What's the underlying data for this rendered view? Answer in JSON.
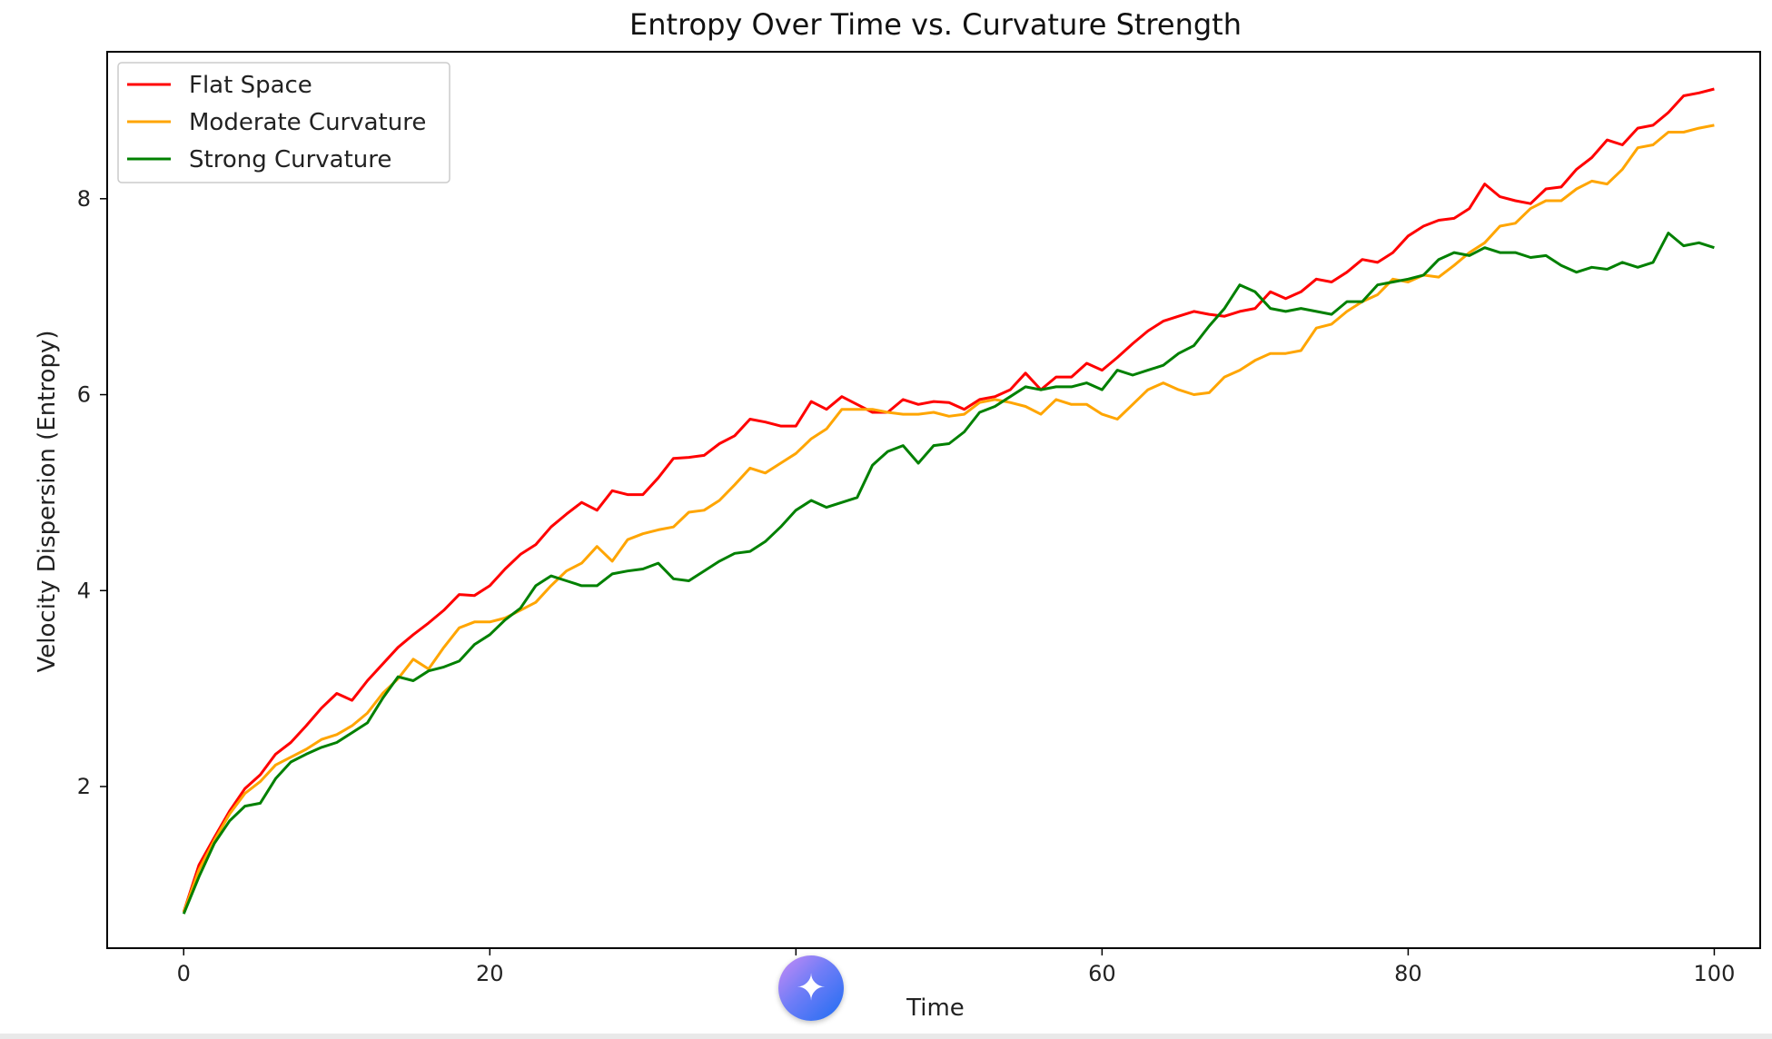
{
  "chart_data": {
    "type": "line",
    "title": "Entropy Over Time vs. Curvature Strength",
    "xlabel": "Time",
    "ylabel": "Velocity Dispersion (Entropy)",
    "xlim": [
      -5,
      103
    ],
    "ylim": [
      0.35,
      9.5
    ],
    "xticks": [
      0,
      20,
      40,
      60,
      80,
      100
    ],
    "yticks": [
      2,
      4,
      6,
      8
    ],
    "grid": false,
    "legend_position": "upper-left",
    "series": [
      {
        "name": "Flat Space",
        "color": "#ff0000",
        "x": [
          0,
          1,
          2,
          3,
          4,
          5,
          6,
          7,
          8,
          9,
          10,
          11,
          12,
          13,
          14,
          15,
          16,
          17,
          18,
          19,
          20,
          21,
          22,
          23,
          24,
          25,
          26,
          27,
          28,
          29,
          30,
          31,
          32,
          33,
          34,
          35,
          36,
          37,
          38,
          39,
          40,
          41,
          42,
          43,
          44,
          45,
          46,
          47,
          48,
          49,
          50,
          51,
          52,
          53,
          54,
          55,
          56,
          57,
          58,
          59,
          60,
          61,
          62,
          63,
          64,
          65,
          66,
          67,
          68,
          69,
          70,
          71,
          72,
          73,
          74,
          75,
          76,
          77,
          78,
          79,
          80,
          81,
          82,
          83,
          84,
          85,
          86,
          87,
          88,
          89,
          90,
          91,
          92,
          93,
          94,
          95,
          96,
          97,
          98,
          99,
          100
        ],
        "y": [
          0.72,
          1.2,
          1.48,
          1.75,
          1.98,
          2.12,
          2.33,
          2.45,
          2.62,
          2.8,
          2.95,
          2.88,
          3.08,
          3.25,
          3.42,
          3.55,
          3.67,
          3.8,
          3.96,
          3.95,
          4.05,
          4.22,
          4.37,
          4.47,
          4.65,
          4.78,
          4.9,
          4.82,
          5.02,
          4.98,
          4.98,
          5.15,
          5.35,
          5.36,
          5.38,
          5.5,
          5.58,
          5.75,
          5.72,
          5.68,
          5.68,
          5.93,
          5.85,
          5.98,
          5.9,
          5.82,
          5.82,
          5.95,
          5.9,
          5.93,
          5.92,
          5.85,
          5.95,
          5.98,
          6.05,
          6.22,
          6.05,
          6.18,
          6.18,
          6.32,
          6.25,
          6.38,
          6.52,
          6.65,
          6.75,
          6.8,
          6.85,
          6.82,
          6.8,
          6.85,
          6.88,
          7.05,
          6.98,
          7.05,
          7.18,
          7.15,
          7.25,
          7.38,
          7.35,
          7.45,
          7.62,
          7.72,
          7.78,
          7.8,
          7.9,
          8.15,
          8.02,
          7.98,
          7.95,
          8.1,
          8.12,
          8.3,
          8.42,
          8.6,
          8.55,
          8.72,
          8.75,
          8.88,
          9.05,
          9.08,
          9.12
        ]
      },
      {
        "name": "Moderate Curvature",
        "color": "#ffa500",
        "x": [
          0,
          1,
          2,
          3,
          4,
          5,
          6,
          7,
          8,
          9,
          10,
          11,
          12,
          13,
          14,
          15,
          16,
          17,
          18,
          19,
          20,
          21,
          22,
          23,
          24,
          25,
          26,
          27,
          28,
          29,
          30,
          31,
          32,
          33,
          34,
          35,
          36,
          37,
          38,
          39,
          40,
          41,
          42,
          43,
          44,
          45,
          46,
          47,
          48,
          49,
          50,
          51,
          52,
          53,
          54,
          55,
          56,
          57,
          58,
          59,
          60,
          61,
          62,
          63,
          64,
          65,
          66,
          67,
          68,
          69,
          70,
          71,
          72,
          73,
          74,
          75,
          76,
          77,
          78,
          79,
          80,
          81,
          82,
          83,
          84,
          85,
          86,
          87,
          88,
          89,
          90,
          91,
          92,
          93,
          94,
          95,
          96,
          97,
          98,
          99,
          100
        ],
        "y": [
          0.72,
          1.15,
          1.45,
          1.72,
          1.93,
          2.05,
          2.22,
          2.3,
          2.38,
          2.48,
          2.53,
          2.62,
          2.75,
          2.95,
          3.1,
          3.3,
          3.2,
          3.42,
          3.62,
          3.68,
          3.68,
          3.72,
          3.8,
          3.88,
          4.05,
          4.2,
          4.28,
          4.45,
          4.3,
          4.52,
          4.58,
          4.62,
          4.65,
          4.8,
          4.82,
          4.92,
          5.08,
          5.25,
          5.2,
          5.3,
          5.4,
          5.55,
          5.65,
          5.85,
          5.85,
          5.85,
          5.82,
          5.8,
          5.8,
          5.82,
          5.78,
          5.8,
          5.92,
          5.95,
          5.92,
          5.88,
          5.8,
          5.95,
          5.9,
          5.9,
          5.8,
          5.75,
          5.9,
          6.05,
          6.12,
          6.05,
          6.0,
          6.02,
          6.18,
          6.25,
          6.35,
          6.42,
          6.42,
          6.45,
          6.68,
          6.72,
          6.85,
          6.95,
          7.02,
          7.18,
          7.15,
          7.22,
          7.2,
          7.32,
          7.45,
          7.55,
          7.72,
          7.75,
          7.9,
          7.98,
          7.98,
          8.1,
          8.18,
          8.15,
          8.3,
          8.52,
          8.55,
          8.68,
          8.68,
          8.72,
          8.75
        ]
      },
      {
        "name": "Strong Curvature",
        "color": "#008000",
        "x": [
          0,
          1,
          2,
          3,
          4,
          5,
          6,
          7,
          8,
          9,
          10,
          11,
          12,
          13,
          14,
          15,
          16,
          17,
          18,
          19,
          20,
          21,
          22,
          23,
          24,
          25,
          26,
          27,
          28,
          29,
          30,
          31,
          32,
          33,
          34,
          35,
          36,
          37,
          38,
          39,
          40,
          41,
          42,
          43,
          44,
          45,
          46,
          47,
          48,
          49,
          50,
          51,
          52,
          53,
          54,
          55,
          56,
          57,
          58,
          59,
          60,
          61,
          62,
          63,
          64,
          65,
          66,
          67,
          68,
          69,
          70,
          71,
          72,
          73,
          74,
          75,
          76,
          77,
          78,
          79,
          80,
          81,
          82,
          83,
          84,
          85,
          86,
          87,
          88,
          89,
          90,
          91,
          92,
          93,
          94,
          95,
          96,
          97,
          98,
          99,
          100
        ],
        "y": [
          0.7,
          1.08,
          1.42,
          1.65,
          1.8,
          1.83,
          2.08,
          2.25,
          2.33,
          2.4,
          2.45,
          2.55,
          2.65,
          2.9,
          3.12,
          3.08,
          3.18,
          3.22,
          3.28,
          3.45,
          3.55,
          3.7,
          3.82,
          4.05,
          4.15,
          4.1,
          4.05,
          4.05,
          4.17,
          4.2,
          4.22,
          4.28,
          4.12,
          4.1,
          4.2,
          4.3,
          4.38,
          4.4,
          4.5,
          4.65,
          4.82,
          4.92,
          4.85,
          4.9,
          4.95,
          5.28,
          5.42,
          5.48,
          5.3,
          5.48,
          5.5,
          5.62,
          5.82,
          5.88,
          5.98,
          6.08,
          6.05,
          6.08,
          6.08,
          6.12,
          6.05,
          6.25,
          6.2,
          6.25,
          6.3,
          6.42,
          6.5,
          6.7,
          6.88,
          7.12,
          7.05,
          6.88,
          6.85,
          6.88,
          6.85,
          6.82,
          6.95,
          6.95,
          7.12,
          7.15,
          7.18,
          7.22,
          7.38,
          7.45,
          7.42,
          7.5,
          7.45,
          7.45,
          7.4,
          7.42,
          7.32,
          7.25,
          7.3,
          7.28,
          7.35,
          7.3,
          7.35,
          7.65,
          7.52,
          7.55,
          7.5
        ]
      }
    ]
  },
  "overlay": {
    "assistant_badge_glyph": "✦"
  }
}
